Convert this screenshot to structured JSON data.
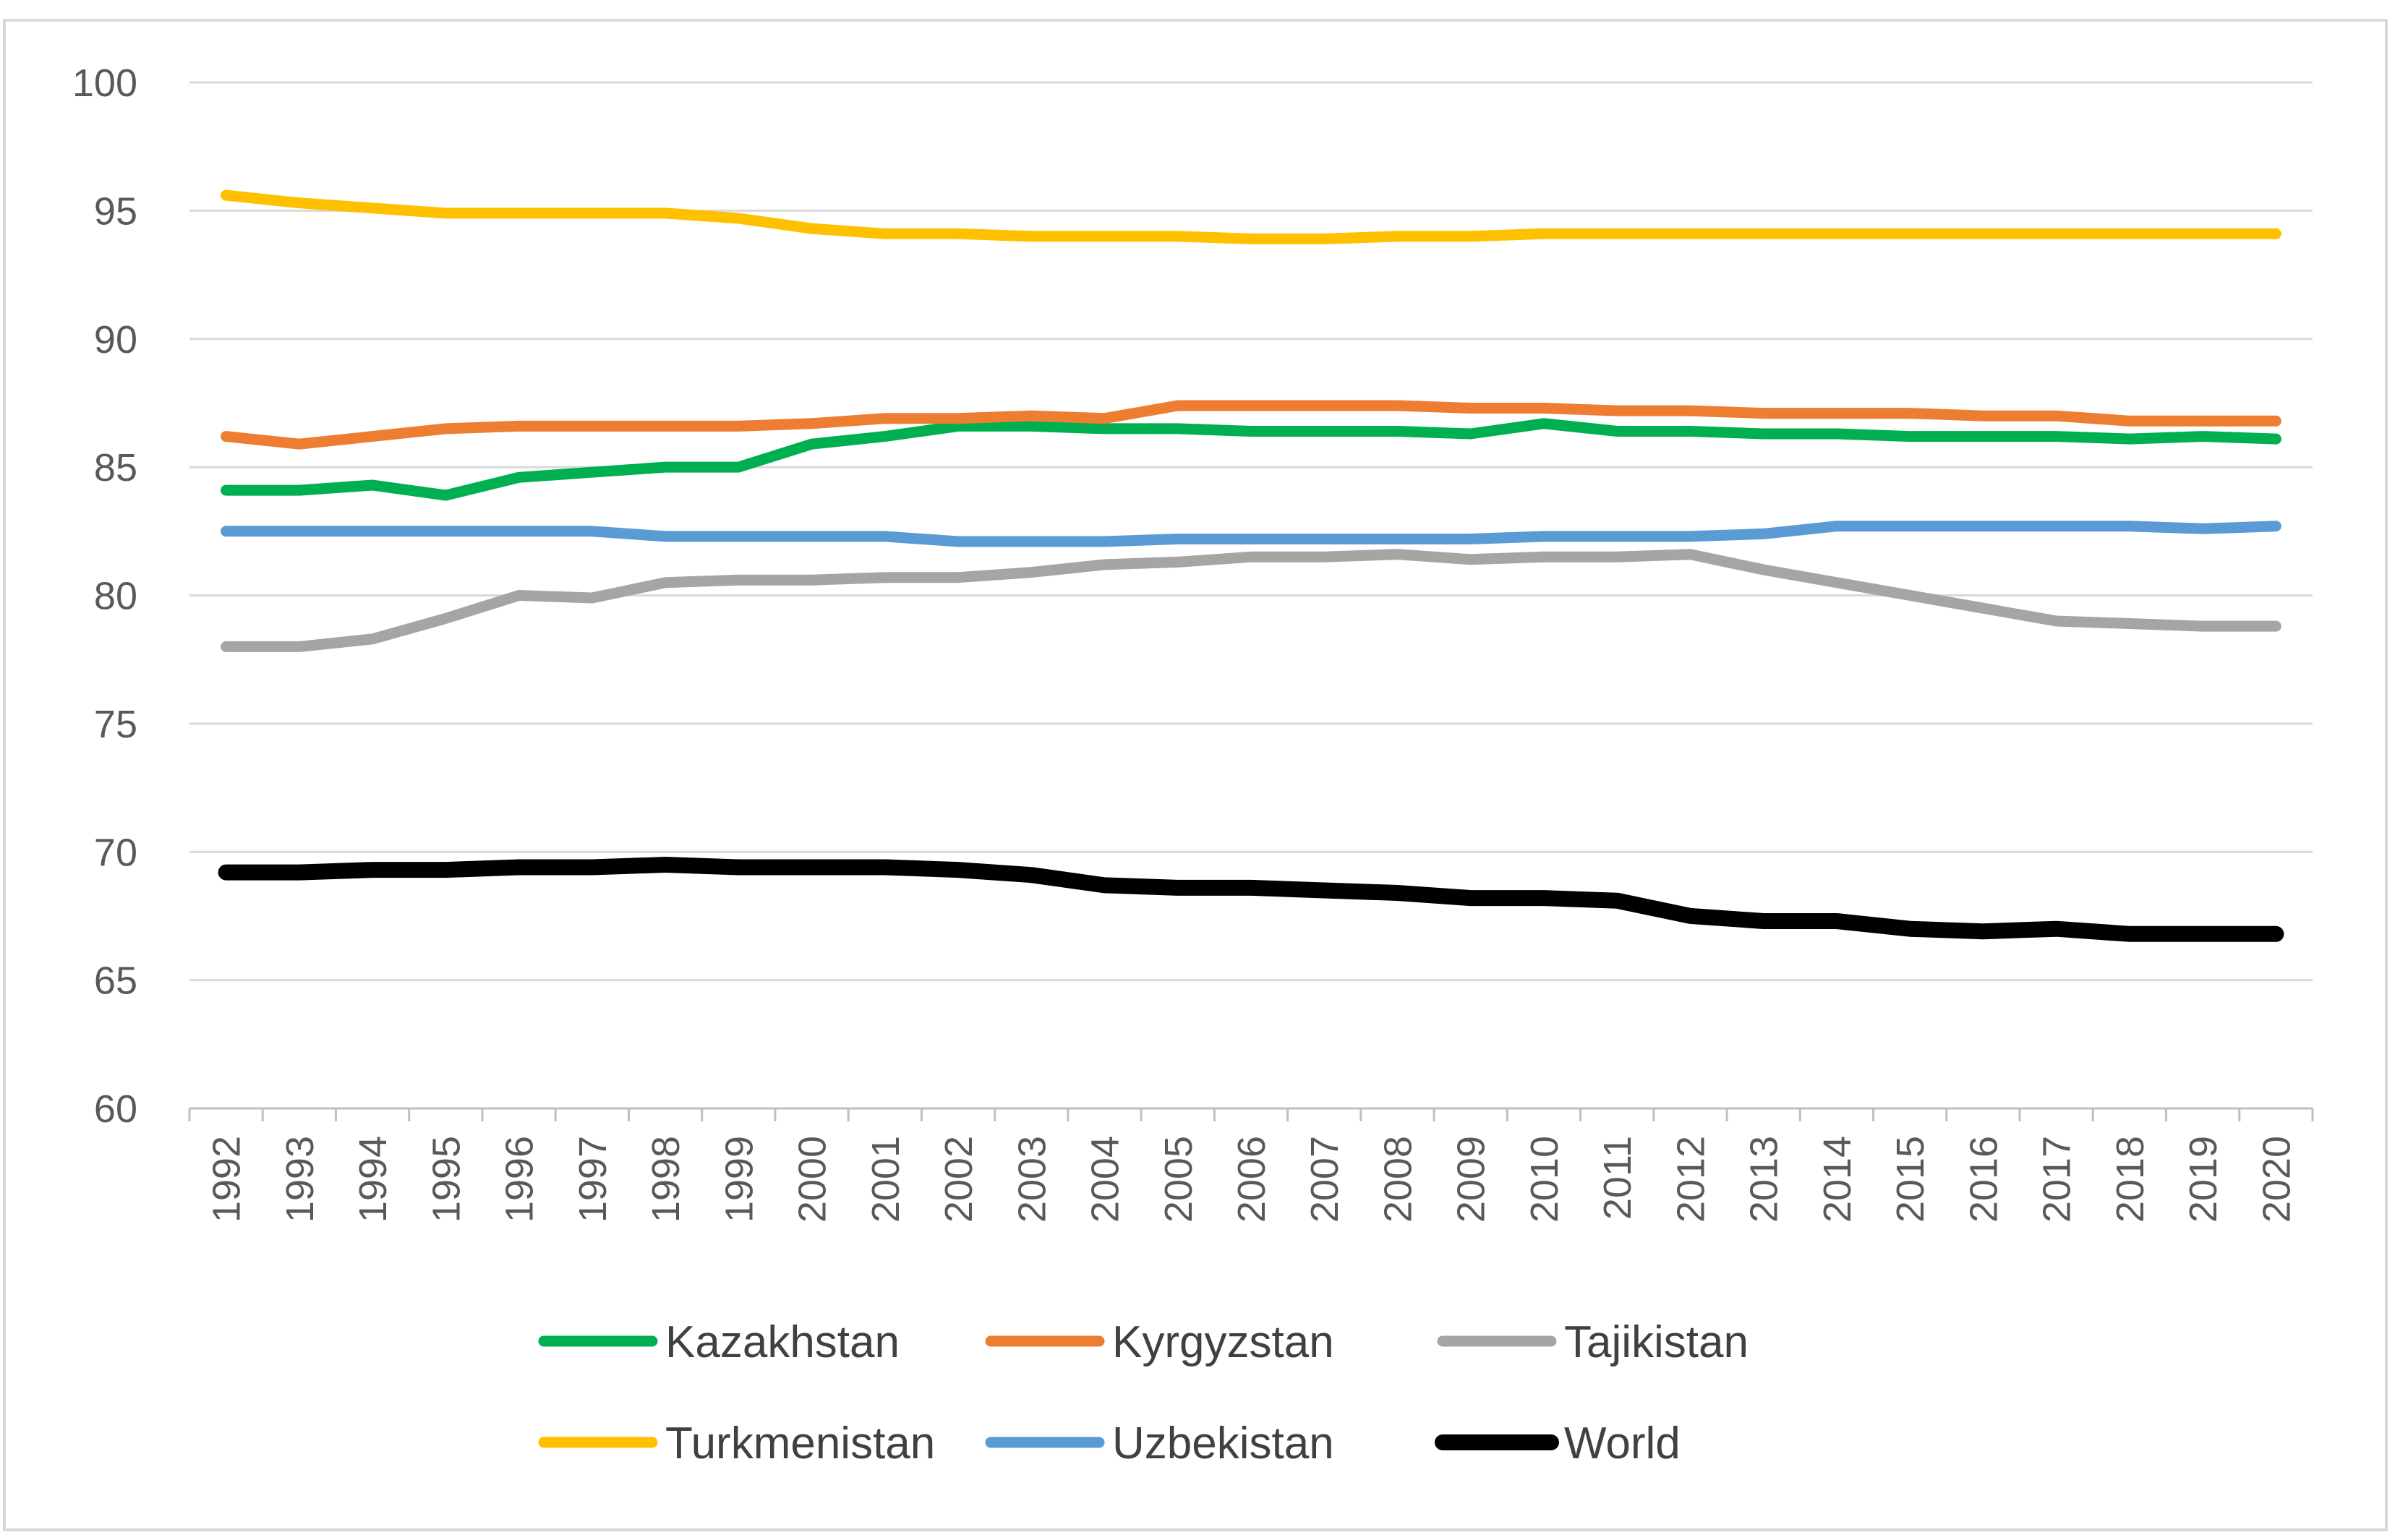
{
  "chart_data": {
    "type": "line",
    "title": "",
    "xlabel": "",
    "ylabel": "",
    "ylim": [
      60,
      100
    ],
    "yticks": [
      60,
      65,
      70,
      75,
      80,
      85,
      90,
      95,
      100
    ],
    "grid": true,
    "legend_position": "bottom",
    "x": [
      "1992",
      "1993",
      "1994",
      "1995",
      "1996",
      "1997",
      "1998",
      "1999",
      "2000",
      "2001",
      "2002",
      "2003",
      "2004",
      "2005",
      "2006",
      "2007",
      "2008",
      "2009",
      "2010",
      "2011",
      "2012",
      "2013",
      "2014",
      "2015",
      "2016",
      "2017",
      "2018",
      "2019",
      "2020"
    ],
    "series": [
      {
        "name": "Kazakhstan",
        "color": "#00b050",
        "values": [
          84.1,
          84.1,
          84.3,
          83.9,
          84.6,
          84.8,
          85.0,
          85.0,
          85.9,
          86.2,
          86.6,
          86.6,
          86.5,
          86.5,
          86.4,
          86.4,
          86.4,
          86.3,
          86.7,
          86.4,
          86.4,
          86.3,
          86.3,
          86.2,
          86.2,
          86.2,
          86.1,
          86.2,
          86.1
        ]
      },
      {
        "name": "Kyrgyzstan",
        "color": "#ed7d31",
        "values": [
          86.2,
          85.9,
          86.2,
          86.5,
          86.6,
          86.6,
          86.6,
          86.6,
          86.7,
          86.9,
          86.9,
          87.0,
          86.9,
          87.4,
          87.4,
          87.4,
          87.4,
          87.3,
          87.3,
          87.2,
          87.2,
          87.1,
          87.1,
          87.1,
          87.0,
          87.0,
          86.8,
          86.8,
          86.8
        ]
      },
      {
        "name": "Tajikistan",
        "color": "#a5a5a5",
        "values": [
          78.0,
          78.0,
          78.3,
          79.1,
          80.0,
          79.9,
          80.5,
          80.6,
          80.6,
          80.7,
          80.7,
          80.9,
          81.2,
          81.3,
          81.5,
          81.5,
          81.6,
          81.4,
          81.5,
          81.5,
          81.6,
          81.0,
          80.5,
          80.0,
          79.5,
          79.0,
          78.9,
          78.8,
          78.8
        ]
      },
      {
        "name": "Turkmenistan",
        "color": "#ffc000",
        "values": [
          95.6,
          95.3,
          95.1,
          94.9,
          94.9,
          94.9,
          94.9,
          94.7,
          94.3,
          94.1,
          94.1,
          94.0,
          94.0,
          94.0,
          93.9,
          93.9,
          94.0,
          94.0,
          94.1,
          94.1,
          94.1,
          94.1,
          94.1,
          94.1,
          94.1,
          94.1,
          94.1,
          94.1,
          94.1
        ]
      },
      {
        "name": "Uzbekistan",
        "color": "#5b9bd5",
        "values": [
          82.5,
          82.5,
          82.5,
          82.5,
          82.5,
          82.5,
          82.3,
          82.3,
          82.3,
          82.3,
          82.1,
          82.1,
          82.1,
          82.2,
          82.2,
          82.2,
          82.2,
          82.2,
          82.3,
          82.3,
          82.3,
          82.4,
          82.7,
          82.7,
          82.7,
          82.7,
          82.7,
          82.6,
          82.7
        ]
      },
      {
        "name": "World",
        "color": "#000000",
        "values": [
          69.2,
          69.2,
          69.3,
          69.3,
          69.4,
          69.4,
          69.5,
          69.4,
          69.4,
          69.4,
          69.3,
          69.1,
          68.7,
          68.6,
          68.6,
          68.5,
          68.4,
          68.2,
          68.2,
          68.1,
          67.5,
          67.3,
          67.3,
          67.0,
          66.9,
          67.0,
          66.8,
          66.8,
          66.8
        ]
      }
    ]
  }
}
